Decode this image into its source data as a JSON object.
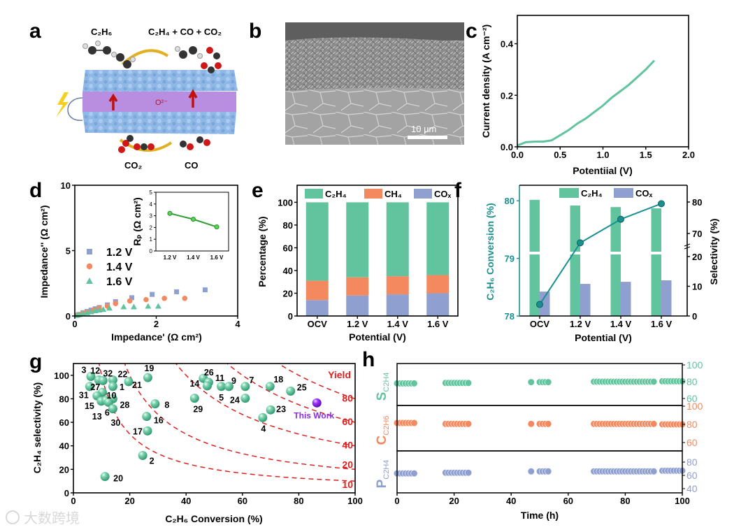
{
  "panel_labels": {
    "a": "a",
    "b": "b",
    "c": "c",
    "d": "d",
    "e": "e",
    "f": "f",
    "g": "g",
    "h": "h"
  },
  "panel_a": {
    "reactant": "C₂H₆",
    "products": "C₂H₄ + CO + CO₂",
    "ion": "O²⁻",
    "cathode_in": "CO₂",
    "cathode_out": "CO"
  },
  "panel_b": {
    "scale_bar": "10 µm"
  },
  "watermark": "大数跨境",
  "chart_data": [
    {
      "panel": "c",
      "type": "line",
      "xlabel": "Potentiial (V)",
      "ylabel": "Current density (A cm⁻²)",
      "xlim": [
        0,
        2
      ],
      "ylim": [
        0,
        0.51
      ],
      "xticks": [
        "0.0",
        "0.5",
        "1.0",
        "1.5",
        "2.0"
      ],
      "yticks": [
        "0.0",
        "0.2",
        "0.4"
      ],
      "x": [
        0,
        0.1,
        0.2,
        0.3,
        0.4,
        0.5,
        0.6,
        0.7,
        0.8,
        0.9,
        1.0,
        1.1,
        1.2,
        1.3,
        1.4,
        1.5,
        1.6
      ],
      "y": [
        0.005,
        0.018,
        0.02,
        0.02,
        0.025,
        0.045,
        0.065,
        0.09,
        0.11,
        0.135,
        0.16,
        0.19,
        0.215,
        0.24,
        0.27,
        0.3,
        0.335
      ],
      "color": "#62c49e"
    },
    {
      "panel": "d",
      "type": "scatter",
      "xlabel": "Impedance' (Ω cm²)",
      "ylabel": "Impedance'' (Ω cm²)",
      "xlim": [
        0,
        4
      ],
      "ylim": [
        0,
        10
      ],
      "xticks": [
        "0",
        "2",
        "4"
      ],
      "yticks": [
        "0",
        "5",
        "10"
      ],
      "legend_position": "center-left",
      "series": [
        {
          "name": "1.2 V",
          "marker": "square",
          "color": "#8e9fd0",
          "x": [
            0.05,
            0.1,
            0.2,
            0.3,
            0.4,
            0.5,
            0.6,
            0.8,
            1.0,
            1.4,
            1.9,
            2.5,
            3.2
          ],
          "y": [
            0.05,
            0.12,
            0.25,
            0.35,
            0.45,
            0.55,
            0.65,
            0.85,
            1.1,
            1.4,
            1.65,
            1.85,
            2.0
          ]
        },
        {
          "name": "1.4 V",
          "marker": "circle",
          "color": "#f4895f",
          "x": [
            0.05,
            0.1,
            0.2,
            0.3,
            0.45,
            0.6,
            0.8,
            1.0,
            1.35,
            1.75,
            2.2,
            2.7
          ],
          "y": [
            0.05,
            0.1,
            0.2,
            0.3,
            0.45,
            0.6,
            0.75,
            0.95,
            1.15,
            1.25,
            1.35,
            1.35
          ]
        },
        {
          "name": "1.6 V",
          "marker": "triangle",
          "color": "#62c49e",
          "x": [
            0.05,
            0.1,
            0.2,
            0.3,
            0.4,
            0.5,
            0.6,
            0.7,
            0.85,
            1.2,
            1.45,
            1.8,
            2.05
          ],
          "y": [
            0.05,
            0.1,
            0.18,
            0.25,
            0.32,
            0.4,
            0.45,
            0.5,
            0.6,
            0.7,
            0.7,
            0.75,
            0.75
          ]
        }
      ]
    },
    {
      "panel": "d-inset",
      "type": "line",
      "ylabel": "Rₚ (Ω cm²)",
      "categories": [
        "1.2 V",
        "1.4 V",
        "1.6 V"
      ],
      "values": [
        3.2,
        2.7,
        2.05
      ],
      "ylim": [
        0,
        5
      ],
      "yticks": [
        "0",
        "1",
        "2",
        "3",
        "4",
        "5"
      ],
      "color": "#2e9e2e"
    },
    {
      "panel": "e",
      "type": "bar",
      "stacked": true,
      "xlabel": "Potential (V)",
      "ylabel": "Percentage (%)",
      "categories": [
        "OCV",
        "1.2 V",
        "1.4 V",
        "1.6 V"
      ],
      "ylim": [
        0,
        115
      ],
      "yticks": [
        "0",
        "20",
        "40",
        "60",
        "80",
        "100"
      ],
      "legend_position": "top",
      "series": [
        {
          "name": "COₓ",
          "values": [
            14,
            18,
            19,
            20
          ],
          "color": "#8e9fd0"
        },
        {
          "name": "CH₄",
          "values": [
            17,
            16,
            16,
            16
          ],
          "color": "#f4895f"
        },
        {
          "name": "C₂H₄",
          "values": [
            69,
            66,
            65,
            64
          ],
          "color": "#62c49e"
        }
      ]
    },
    {
      "panel": "f",
      "type": "bar+line",
      "xlabel": "Potential (V)",
      "ylabel_left": "C₂H₆ Conversion (%)",
      "ylabel_right": "Selectivity (%)",
      "categories": [
        "OCV",
        "1.2 V",
        "1.4 V",
        "1.6 V"
      ],
      "ylim_left": [
        78,
        80.27
      ],
      "yticks_left": [
        "78",
        "79",
        "80"
      ],
      "yticks_right": [
        "0",
        "10",
        "20",
        "70",
        "80"
      ],
      "right_axis_break": [
        20,
        70
      ],
      "legend_position": "top",
      "bars": [
        {
          "name": "C₂H₄",
          "values": [
            80.7,
            78.9,
            78.4,
            78.0
          ],
          "color": "#62c49e"
        },
        {
          "name": "COₓ",
          "values": [
            8.2,
            10.8,
            11.5,
            12.0
          ],
          "color": "#8e9fd0"
        }
      ],
      "line": {
        "name": "C₂H₆ Conversion",
        "values": [
          78.2,
          79.27,
          79.68,
          79.95
        ],
        "color": "#1a8f8f"
      }
    },
    {
      "panel": "g",
      "type": "scatter",
      "xlabel": "C₂H₆ Conversion (%)",
      "ylabel": "C₂H₄ selectivity (%)",
      "xlim": [
        0,
        100
      ],
      "ylim": [
        0,
        110
      ],
      "xticks": [
        "0",
        "20",
        "40",
        "60",
        "80",
        "100"
      ],
      "yticks": [
        "0",
        "20",
        "40",
        "60",
        "80",
        "100"
      ],
      "color": "#62c49e",
      "points": [
        {
          "label": "3",
          "x": 6.2,
          "y": 99
        },
        {
          "label": "12",
          "x": 9,
          "y": 96
        },
        {
          "label": "32",
          "x": 10.5,
          "y": 95.5
        },
        {
          "label": "22",
          "x": 14,
          "y": 96
        },
        {
          "label": "1",
          "x": 14,
          "y": 90.5
        },
        {
          "label": "27",
          "x": 5.8,
          "y": 90.5
        },
        {
          "label": "10",
          "x": 10.3,
          "y": 85.5
        },
        {
          "label": "31",
          "x": 8.4,
          "y": 82.5
        },
        {
          "label": "15",
          "x": 9.9,
          "y": 78
        },
        {
          "label": "13",
          "x": 11.6,
          "y": 78.5
        },
        {
          "label": "28",
          "x": 14,
          "y": 80
        },
        {
          "label": "6",
          "x": 12.5,
          "y": 77
        },
        {
          "label": "30",
          "x": 14,
          "y": 71.5
        },
        {
          "label": "21",
          "x": 19.6,
          "y": 94.6
        },
        {
          "label": "19",
          "x": 26.4,
          "y": 98
        },
        {
          "label": "8",
          "x": 29,
          "y": 75.7
        },
        {
          "label": "16",
          "x": 26,
          "y": 65
        },
        {
          "label": "17",
          "x": 26.3,
          "y": 52.7
        },
        {
          "label": "2",
          "x": 24.6,
          "y": 31.8
        },
        {
          "label": "20",
          "x": 11.2,
          "y": 13.9
        },
        {
          "label": "26",
          "x": 46.1,
          "y": 97.4
        },
        {
          "label": "11",
          "x": 48,
          "y": 94
        },
        {
          "label": "14",
          "x": 47.5,
          "y": 91
        },
        {
          "label": "5",
          "x": 52.5,
          "y": 90.5
        },
        {
          "label": "9",
          "x": 55.2,
          "y": 90.5
        },
        {
          "label": "7",
          "x": 61,
          "y": 90.5
        },
        {
          "label": "24",
          "x": 61,
          "y": 80.5
        },
        {
          "label": "29",
          "x": 43,
          "y": 80.5
        },
        {
          "label": "18",
          "x": 69.8,
          "y": 90.5
        },
        {
          "label": "25",
          "x": 77.1,
          "y": 86.5
        },
        {
          "label": "23",
          "x": 70,
          "y": 70.6
        },
        {
          "label": "4",
          "x": 67.2,
          "y": 64
        }
      ],
      "this_work": {
        "label": "This Work",
        "x": 86.4,
        "y": 76.5,
        "color": "#8a2be2"
      },
      "yield_title": "Yield",
      "yield_curves": [
        10,
        20,
        40,
        60,
        80
      ],
      "yield_labels": [
        "10",
        "20",
        "40",
        "60",
        "80"
      ],
      "yield_color": "#e02020"
    },
    {
      "panel": "h",
      "type": "scatter",
      "xlabel": "Time (h)",
      "xlim": [
        0,
        100
      ],
      "xticks": [
        "0",
        "20",
        "40",
        "60",
        "80",
        "100"
      ],
      "time": [
        0,
        1,
        2,
        3,
        4,
        5,
        6,
        17,
        18,
        19,
        20,
        21,
        22,
        23,
        24,
        25,
        47,
        50,
        51,
        52,
        53,
        69,
        70,
        71,
        72,
        73,
        74,
        75,
        76,
        77,
        78,
        79,
        80,
        81,
        82,
        83,
        84,
        85,
        86,
        87,
        88,
        89,
        90,
        93,
        94,
        95,
        96,
        97,
        98,
        99,
        100
      ],
      "panels": [
        {
          "label_main": "S",
          "label_sub": "C2H4",
          "color": "#62c49e",
          "yticks": [
            "60",
            "80",
            "100"
          ],
          "values": [
            78,
            78,
            78,
            78,
            78,
            78,
            78,
            78.5,
            78.5,
            78.5,
            78.5,
            78.5,
            78.5,
            78.5,
            78.5,
            78.5,
            79.5,
            79.5,
            79.5,
            79.5,
            79.5,
            80,
            80,
            80,
            80,
            80,
            80,
            80,
            80,
            80,
            80,
            80,
            80,
            80,
            80,
            80,
            80,
            80,
            80,
            80,
            80,
            80,
            80,
            80.5,
            80.5,
            80.5,
            80.5,
            80.5,
            80.5,
            80.5,
            80.5
          ]
        },
        {
          "label_main": "C",
          "label_sub": "C2H6",
          "color": "#f4895f",
          "yticks": [
            "60",
            "80",
            "100"
          ],
          "values": [
            81.5,
            81.5,
            81.5,
            81.5,
            81.5,
            81.5,
            81.5,
            80.5,
            80.5,
            80.5,
            80.5,
            80.5,
            80.5,
            80.5,
            80.5,
            80.5,
            80.5,
            80.5,
            80.5,
            80.5,
            80.5,
            80.5,
            80.5,
            80.5,
            80.5,
            80.5,
            80.5,
            80.5,
            80.5,
            80.5,
            80.5,
            80.5,
            80.5,
            80.5,
            80.5,
            80.5,
            80.5,
            80.5,
            80.5,
            80.5,
            80.5,
            80.5,
            80.5,
            80,
            80,
            80,
            80,
            80,
            80,
            80,
            80
          ]
        },
        {
          "label_main": "P",
          "label_sub": "C2H4",
          "color": "#8e9fd0",
          "yticks": [
            "40",
            "60",
            "80"
          ],
          "values": [
            63,
            63,
            63,
            63,
            63,
            63,
            63,
            64,
            64,
            64,
            64,
            64,
            64,
            64,
            64,
            64,
            66,
            66,
            66,
            66,
            66,
            66,
            66,
            66,
            66,
            66,
            66,
            66,
            66,
            66,
            66,
            66,
            66,
            66,
            66,
            66,
            66,
            66,
            66,
            66,
            66,
            66,
            66,
            67,
            67,
            67,
            67,
            67,
            67,
            67,
            67
          ]
        }
      ]
    }
  ]
}
